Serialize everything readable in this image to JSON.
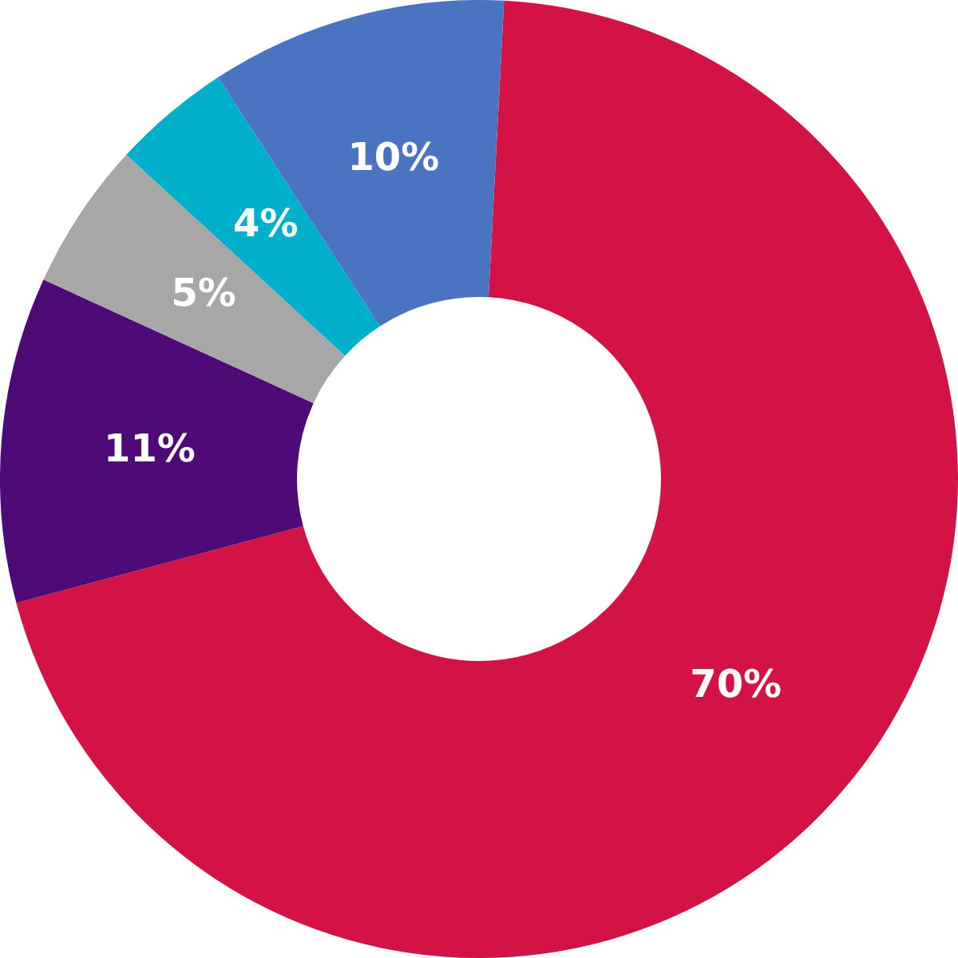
{
  "chart_data": {
    "type": "donut",
    "categories": [
      null,
      null,
      null,
      null,
      null
    ],
    "values": [
      70,
      11,
      5,
      4,
      10
    ],
    "colors": [
      "#d31245",
      "#4e0b78",
      "#a7a7a7",
      "#00b0ca",
      "#4a74c1"
    ],
    "value_labels": [
      "70%",
      "11%",
      "5%",
      "4%",
      "10%"
    ],
    "legend": false
  }
}
